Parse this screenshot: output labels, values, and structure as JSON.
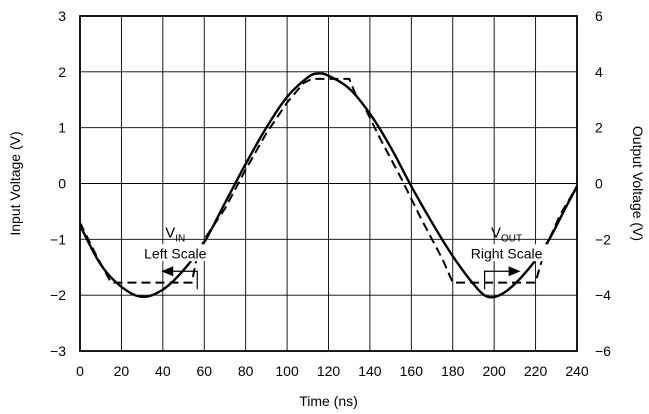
{
  "chart_data": {
    "type": "line",
    "xlabel": "Time (ns)",
    "ylabel_left": "Input Voltage (V)",
    "ylabel_right": "Output Voltage (V)",
    "xlim": [
      0,
      240
    ],
    "ylim_left": [
      -3,
      3
    ],
    "ylim_right": [
      -6,
      6
    ],
    "x_ticks": [
      "0",
      "20",
      "40",
      "60",
      "80",
      "100",
      "120",
      "140",
      "160",
      "180",
      "200",
      "220",
      "240"
    ],
    "y_ticks_left": [
      "−3",
      "−2",
      "−1",
      "0",
      "1",
      "2",
      "3"
    ],
    "y_ticks_right": [
      "−6",
      "−4",
      "−2",
      "0",
      "2",
      "4",
      "6"
    ],
    "grid": true,
    "series": [
      {
        "name": "VIN",
        "axis": "left",
        "style": "solid",
        "x": [
          0,
          10,
          20,
          30,
          40,
          50,
          60,
          70,
          80,
          90,
          100,
          110,
          115,
          120,
          130,
          140,
          150,
          160,
          170,
          180,
          190,
          197,
          205,
          215,
          225,
          235,
          240
        ],
        "y": [
          -0.75,
          -1.45,
          -1.85,
          -2.03,
          -1.9,
          -1.55,
          -1.05,
          -0.35,
          0.35,
          1.0,
          1.55,
          1.9,
          1.97,
          1.93,
          1.7,
          1.25,
          0.65,
          -0.05,
          -0.7,
          -1.3,
          -1.8,
          -2.03,
          -1.95,
          -1.6,
          -1.1,
          -0.4,
          -0.05
        ]
      },
      {
        "name": "VOUT",
        "axis": "right",
        "style": "dashed",
        "x": [
          0,
          8,
          15,
          30,
          45,
          54,
          56,
          60,
          70,
          80,
          90,
          100,
          108,
          112,
          130,
          133,
          137,
          145,
          155,
          165,
          175,
          180,
          200,
          220,
          222,
          226,
          232,
          240
        ],
        "y": [
          -1.4,
          -2.6,
          -3.55,
          -3.55,
          -3.55,
          -3.55,
          -2.8,
          -2.0,
          -0.9,
          0.5,
          1.8,
          2.9,
          3.6,
          3.75,
          3.75,
          3.2,
          2.8,
          1.6,
          0.2,
          -1.3,
          -2.7,
          -3.55,
          -3.55,
          -3.55,
          -3.0,
          -2.1,
          -1.1,
          -0.1
        ]
      }
    ],
    "annotations": [
      {
        "main": "V",
        "sub": "IN",
        "line2": "Left Scale",
        "x": 46,
        "y_left": -1.5,
        "direction": "left"
      },
      {
        "main": "V",
        "sub": "OUT",
        "line2": "Right Scale",
        "x": 206,
        "y_left": -1.5,
        "direction": "right"
      }
    ]
  }
}
